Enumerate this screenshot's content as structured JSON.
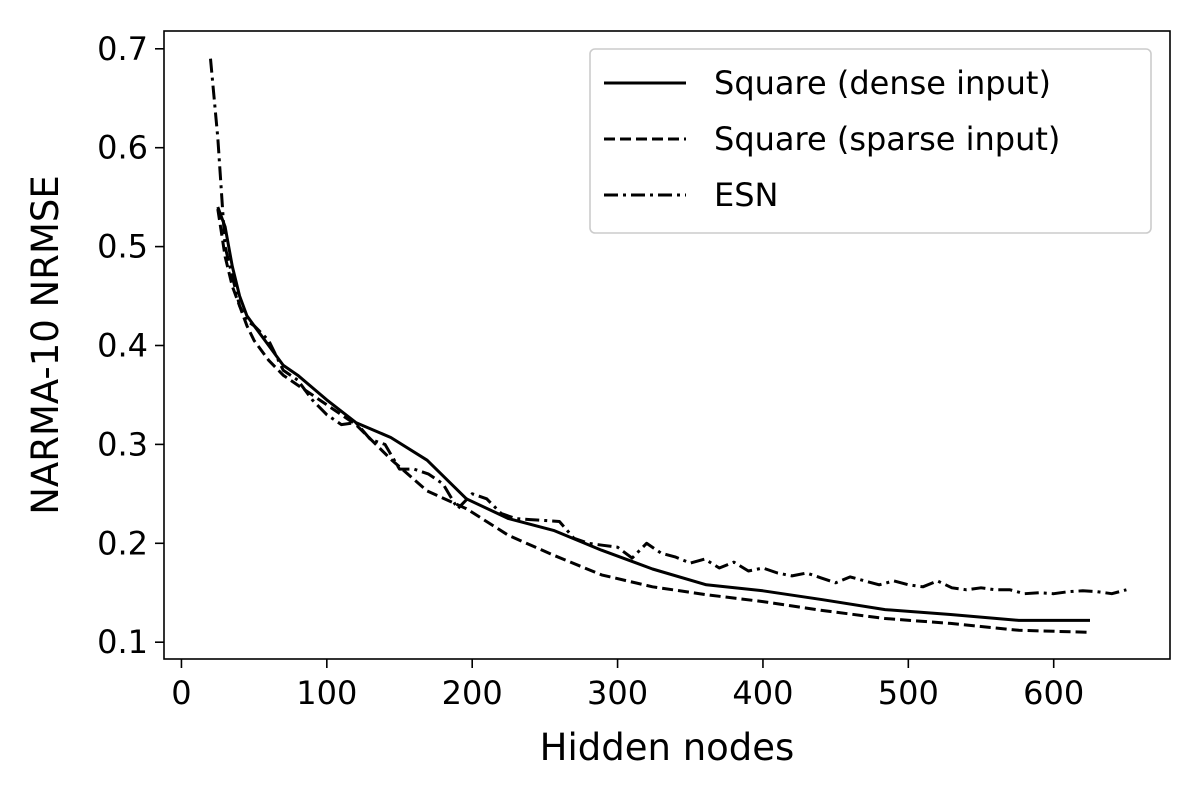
{
  "chart_data": {
    "type": "line",
    "xlabel": "Hidden nodes",
    "ylabel": "NARMA-10 NRMSE",
    "xlim": [
      -12,
      680
    ],
    "ylim": [
      0.083,
      0.718
    ],
    "xticks": [
      0,
      100,
      200,
      300,
      400,
      500,
      600
    ],
    "yticks": [
      0.1,
      0.2,
      0.3,
      0.4,
      0.5,
      0.6,
      0.7
    ],
    "xtick_labels": [
      "0",
      "100",
      "200",
      "300",
      "400",
      "500",
      "600"
    ],
    "ytick_labels": [
      "0.1",
      "0.2",
      "0.3",
      "0.4",
      "0.5",
      "0.6",
      "0.7"
    ],
    "grid": false,
    "legend_position": "top-right",
    "series": [
      {
        "name": "Square (dense input)",
        "style": "solid",
        "color": "#000000",
        "points": [
          [
            25,
            0.54
          ],
          [
            30,
            0.52
          ],
          [
            35,
            0.48
          ],
          [
            40,
            0.45
          ],
          [
            45,
            0.43
          ],
          [
            50,
            0.42
          ],
          [
            60,
            0.4
          ],
          [
            70,
            0.38
          ],
          [
            80,
            0.37
          ],
          [
            100,
            0.345
          ],
          [
            120,
            0.322
          ],
          [
            144,
            0.307
          ],
          [
            169,
            0.284
          ],
          [
            196,
            0.245
          ],
          [
            225,
            0.225
          ],
          [
            256,
            0.213
          ],
          [
            289,
            0.193
          ],
          [
            324,
            0.174
          ],
          [
            361,
            0.158
          ],
          [
            400,
            0.152
          ],
          [
            441,
            0.143
          ],
          [
            484,
            0.133
          ],
          [
            529,
            0.128
          ],
          [
            576,
            0.122
          ],
          [
            625,
            0.122
          ]
        ]
      },
      {
        "name": "Square (sparse input)",
        "style": "dashed",
        "color": "#000000",
        "points": [
          [
            25,
            0.538
          ],
          [
            30,
            0.49
          ],
          [
            35,
            0.46
          ],
          [
            40,
            0.44
          ],
          [
            45,
            0.42
          ],
          [
            50,
            0.405
          ],
          [
            60,
            0.385
          ],
          [
            70,
            0.37
          ],
          [
            80,
            0.36
          ],
          [
            100,
            0.34
          ],
          [
            120,
            0.32
          ],
          [
            144,
            0.285
          ],
          [
            169,
            0.253
          ],
          [
            196,
            0.235
          ],
          [
            225,
            0.208
          ],
          [
            256,
            0.188
          ],
          [
            289,
            0.168
          ],
          [
            324,
            0.156
          ],
          [
            361,
            0.148
          ],
          [
            400,
            0.141
          ],
          [
            441,
            0.132
          ],
          [
            484,
            0.124
          ],
          [
            529,
            0.119
          ],
          [
            576,
            0.112
          ],
          [
            625,
            0.11
          ]
        ]
      },
      {
        "name": "ESN",
        "style": "dashdot",
        "color": "#000000",
        "points": [
          [
            20,
            0.69
          ],
          [
            25,
            0.61
          ],
          [
            30,
            0.5
          ],
          [
            35,
            0.47
          ],
          [
            40,
            0.44
          ],
          [
            45,
            0.425
          ],
          [
            50,
            0.42
          ],
          [
            60,
            0.405
          ],
          [
            70,
            0.375
          ],
          [
            80,
            0.365
          ],
          [
            90,
            0.345
          ],
          [
            100,
            0.33
          ],
          [
            110,
            0.32
          ],
          [
            120,
            0.322
          ],
          [
            130,
            0.305
          ],
          [
            140,
            0.3
          ],
          [
            150,
            0.275
          ],
          [
            160,
            0.275
          ],
          [
            170,
            0.27
          ],
          [
            180,
            0.26
          ],
          [
            190,
            0.235
          ],
          [
            200,
            0.25
          ],
          [
            210,
            0.245
          ],
          [
            220,
            0.23
          ],
          [
            230,
            0.225
          ],
          [
            240,
            0.224
          ],
          [
            250,
            0.223
          ],
          [
            260,
            0.222
          ],
          [
            270,
            0.205
          ],
          [
            280,
            0.2
          ],
          [
            290,
            0.198
          ],
          [
            300,
            0.196
          ],
          [
            310,
            0.185
          ],
          [
            320,
            0.2
          ],
          [
            330,
            0.19
          ],
          [
            340,
            0.186
          ],
          [
            350,
            0.18
          ],
          [
            360,
            0.184
          ],
          [
            370,
            0.175
          ],
          [
            380,
            0.181
          ],
          [
            390,
            0.172
          ],
          [
            400,
            0.175
          ],
          [
            410,
            0.17
          ],
          [
            420,
            0.167
          ],
          [
            430,
            0.17
          ],
          [
            440,
            0.165
          ],
          [
            450,
            0.16
          ],
          [
            460,
            0.166
          ],
          [
            470,
            0.162
          ],
          [
            480,
            0.158
          ],
          [
            490,
            0.162
          ],
          [
            500,
            0.158
          ],
          [
            510,
            0.156
          ],
          [
            520,
            0.162
          ],
          [
            530,
            0.155
          ],
          [
            540,
            0.153
          ],
          [
            550,
            0.155
          ],
          [
            560,
            0.153
          ],
          [
            570,
            0.153
          ],
          [
            580,
            0.149
          ],
          [
            590,
            0.15
          ],
          [
            600,
            0.149
          ],
          [
            610,
            0.151
          ],
          [
            620,
            0.152
          ],
          [
            630,
            0.151
          ],
          [
            640,
            0.149
          ],
          [
            650,
            0.153
          ]
        ]
      }
    ]
  }
}
